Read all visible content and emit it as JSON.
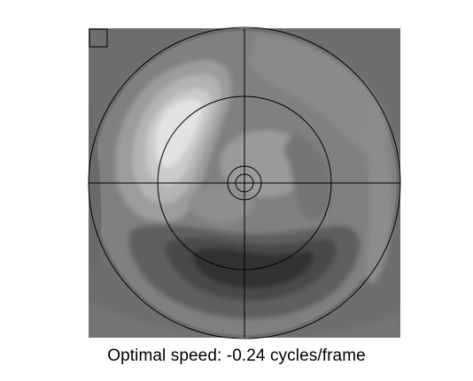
{
  "figure": {
    "caption": "Optimal speed: -0.24 cycles/frame"
  },
  "colors": {
    "background": "#ffffff",
    "base_gray": "#7d7d7d",
    "light_gray": "#bdbdbd",
    "lighter_gray": "#d6d6d6",
    "lightest_gray": "#ebebeb",
    "mid_gray": "#9a9a9a",
    "dark_gray": "#4d4d4d",
    "darker_gray": "#363636",
    "line": "#000000"
  }
}
